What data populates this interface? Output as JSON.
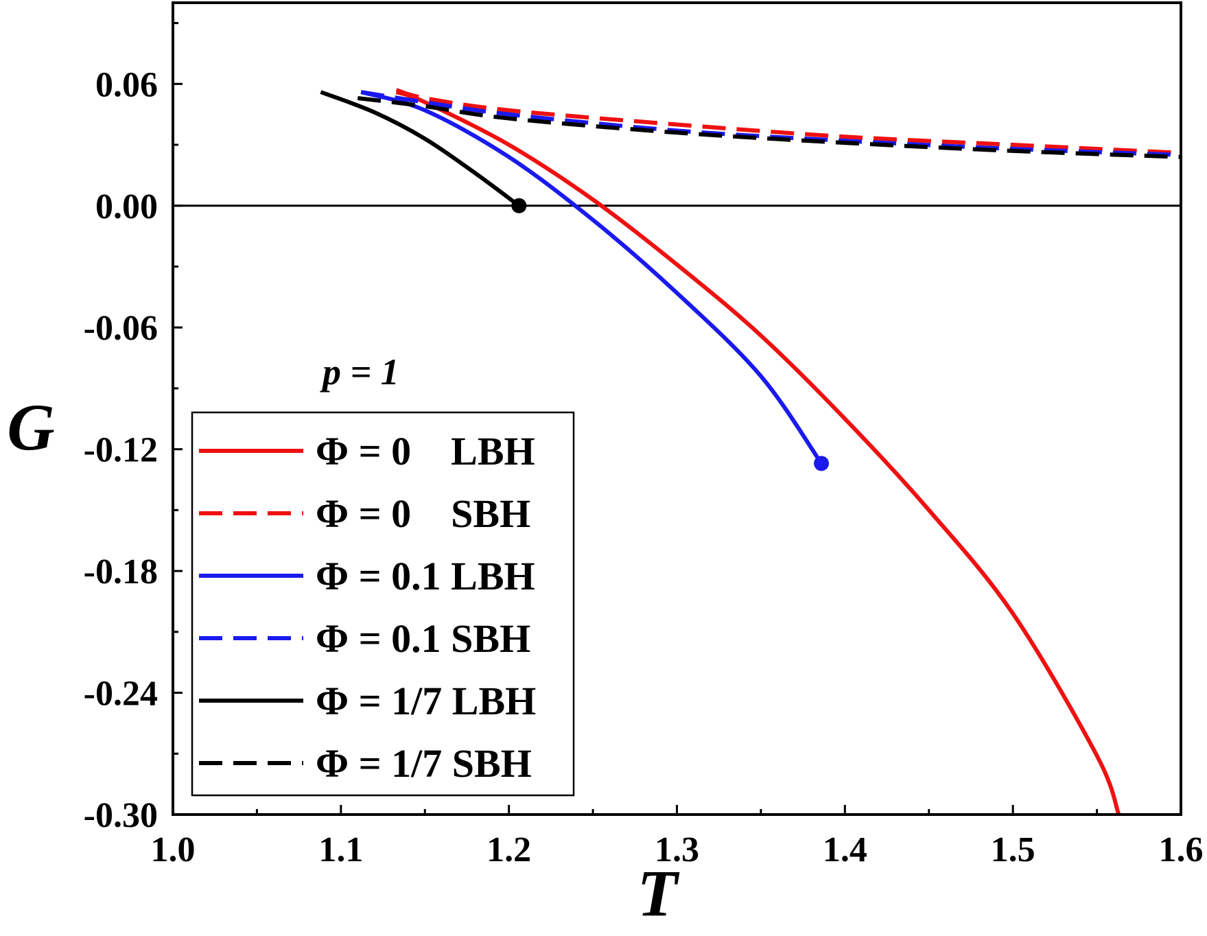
{
  "chart_data": {
    "type": "line",
    "xlabel": "T",
    "ylabel": "G",
    "xlim": [
      1.0,
      1.6
    ],
    "ylim": [
      -0.3,
      0.1
    ],
    "x_ticks": [
      "1.0",
      "1.1",
      "1.2",
      "1.3",
      "1.4",
      "1.5",
      "1.6"
    ],
    "x_tick_values": [
      1.0,
      1.1,
      1.2,
      1.3,
      1.4,
      1.5,
      1.6
    ],
    "y_ticks": [
      "0.06",
      "0.00",
      "-0.06",
      "-0.12",
      "-0.18",
      "-0.24",
      "-0.30"
    ],
    "y_tick_values": [
      0.06,
      0.0,
      -0.06,
      -0.12,
      -0.18,
      -0.24,
      -0.3
    ],
    "annotation": "p = 1",
    "reference_line_y": 0.0,
    "legend_position": "lower-left",
    "series": [
      {
        "name": "Φ = 0    LBH",
        "color": "#ee1111",
        "dash": false,
        "x": [
          1.133,
          1.15,
          1.2,
          1.25,
          1.3,
          1.35,
          1.4,
          1.45,
          1.5,
          1.55,
          1.563
        ],
        "y": [
          0.056,
          0.051,
          0.03,
          0.003,
          -0.029,
          -0.064,
          -0.105,
          -0.15,
          -0.201,
          -0.271,
          -0.3
        ]
      },
      {
        "name": "Φ = 0    SBH",
        "color": "#ee1111",
        "dash": true,
        "x": [
          1.133,
          1.15,
          1.2,
          1.3,
          1.4,
          1.5,
          1.6
        ],
        "y": [
          0.057,
          0.053,
          0.047,
          0.04,
          0.034,
          0.03,
          0.026
        ]
      },
      {
        "name": "Φ = 0.1 LBH",
        "color": "#1a1aee",
        "dash": false,
        "x": [
          1.112,
          1.15,
          1.2,
          1.25,
          1.3,
          1.35,
          1.386
        ],
        "y": [
          0.056,
          0.047,
          0.024,
          -0.007,
          -0.043,
          -0.084,
          -0.127
        ]
      },
      {
        "name": "Φ = 0.1 SBH",
        "color": "#1a1aee",
        "dash": true,
        "x": [
          1.112,
          1.15,
          1.2,
          1.3,
          1.4,
          1.5,
          1.6
        ],
        "y": [
          0.056,
          0.051,
          0.045,
          0.037,
          0.032,
          0.028,
          0.025
        ]
      },
      {
        "name": "Φ = 1/7 LBH",
        "color": "#000000",
        "dash": false,
        "x": [
          1.088,
          1.12,
          1.15,
          1.18,
          1.206
        ],
        "y": [
          0.056,
          0.046,
          0.033,
          0.016,
          0.0
        ]
      },
      {
        "name": "Φ = 1/7 SBH",
        "color": "#000000",
        "dash": true,
        "x": [
          1.11,
          1.15,
          1.2,
          1.3,
          1.4,
          1.5,
          1.6
        ],
        "y": [
          0.053,
          0.049,
          0.043,
          0.036,
          0.031,
          0.027,
          0.024
        ]
      }
    ],
    "endpoints": [
      {
        "x": 1.206,
        "y": 0.0,
        "color": "#000000"
      },
      {
        "x": 1.386,
        "y": -0.127,
        "color": "#1a1aee"
      }
    ]
  }
}
